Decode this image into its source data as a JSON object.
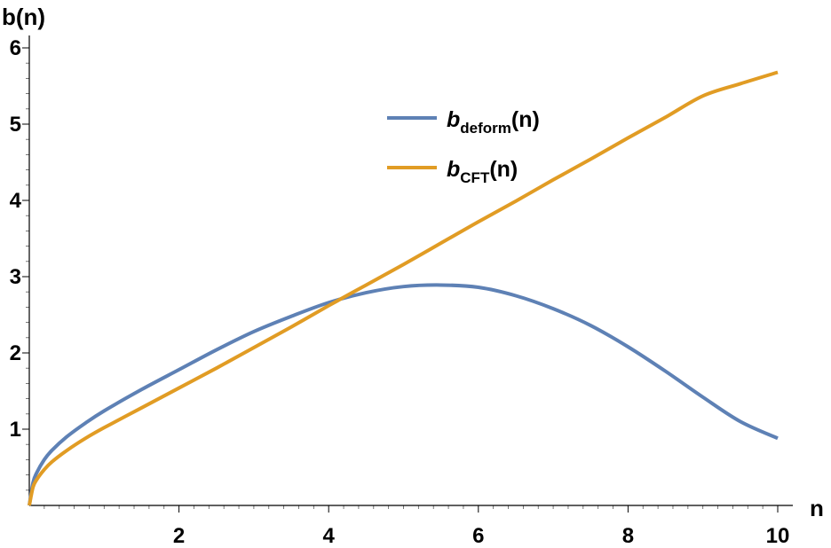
{
  "chart_data": {
    "type": "line",
    "xlabel": "n",
    "ylabel": "b(n)",
    "xlim": [
      0,
      10
    ],
    "ylim": [
      0,
      6
    ],
    "x_ticks": [
      2,
      4,
      6,
      8,
      10
    ],
    "y_ticks": [
      1,
      2,
      3,
      4,
      5,
      6
    ],
    "grid": false,
    "legend_position": "upper-middle",
    "series": [
      {
        "name_main": "b",
        "name_sub": "deform",
        "name_suffix": "(n)",
        "color": "#5E81B5",
        "x": [
          0,
          0.05,
          0.1,
          0.2,
          0.3,
          0.5,
          0.75,
          1,
          1.5,
          2,
          2.5,
          3,
          3.5,
          4,
          4.5,
          5,
          5.5,
          6,
          6.5,
          7,
          7.5,
          8,
          8.5,
          9,
          9.5,
          10
        ],
        "y": [
          0,
          0.3,
          0.43,
          0.6,
          0.72,
          0.9,
          1.08,
          1.24,
          1.52,
          1.78,
          2.04,
          2.28,
          2.48,
          2.66,
          2.79,
          2.87,
          2.89,
          2.86,
          2.75,
          2.58,
          2.36,
          2.08,
          1.76,
          1.42,
          1.1,
          0.88
        ]
      },
      {
        "name_main": "b",
        "name_sub": "CFT",
        "name_suffix": "(n)",
        "color": "#E19C24",
        "x": [
          0,
          0.05,
          0.1,
          0.2,
          0.3,
          0.5,
          0.75,
          1,
          1.5,
          2,
          2.5,
          3,
          3.5,
          4,
          4.5,
          5,
          5.5,
          6,
          6.5,
          7,
          7.5,
          8,
          8.5,
          9,
          9.5,
          10
        ],
        "y": [
          0,
          0.24,
          0.34,
          0.47,
          0.57,
          0.72,
          0.88,
          1.02,
          1.28,
          1.54,
          1.8,
          2.07,
          2.34,
          2.62,
          2.89,
          3.16,
          3.44,
          3.72,
          3.99,
          4.27,
          4.54,
          4.82,
          5.09,
          5.37,
          5.53,
          5.68
        ]
      }
    ]
  }
}
